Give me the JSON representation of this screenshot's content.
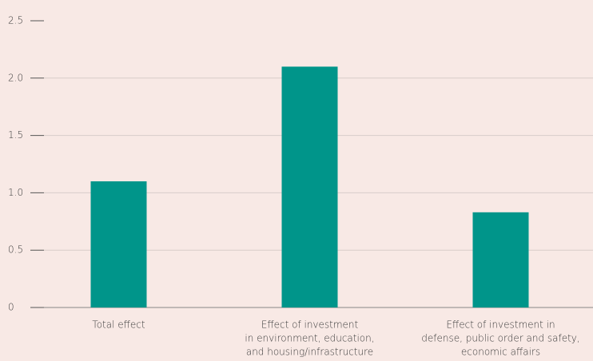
{
  "chart_data": {
    "type": "bar",
    "categories": [
      [
        "Total effect"
      ],
      [
        "Effect of investment",
        "in environment, education,",
        "and housing/infrastructure"
      ],
      [
        "Effect of investment in",
        "defense, public order and safety,",
        "economic affairs"
      ]
    ],
    "values": [
      1.1,
      2.1,
      0.83
    ],
    "color": "#00958a",
    "ylim": [
      0,
      2.5
    ],
    "yticks": [
      0,
      0.5,
      {
        "value": 1,
        "label": "1.0"
      },
      1.5,
      {
        "value": 2,
        "label": "2.0"
      },
      2.5
    ],
    "grid": true
  }
}
